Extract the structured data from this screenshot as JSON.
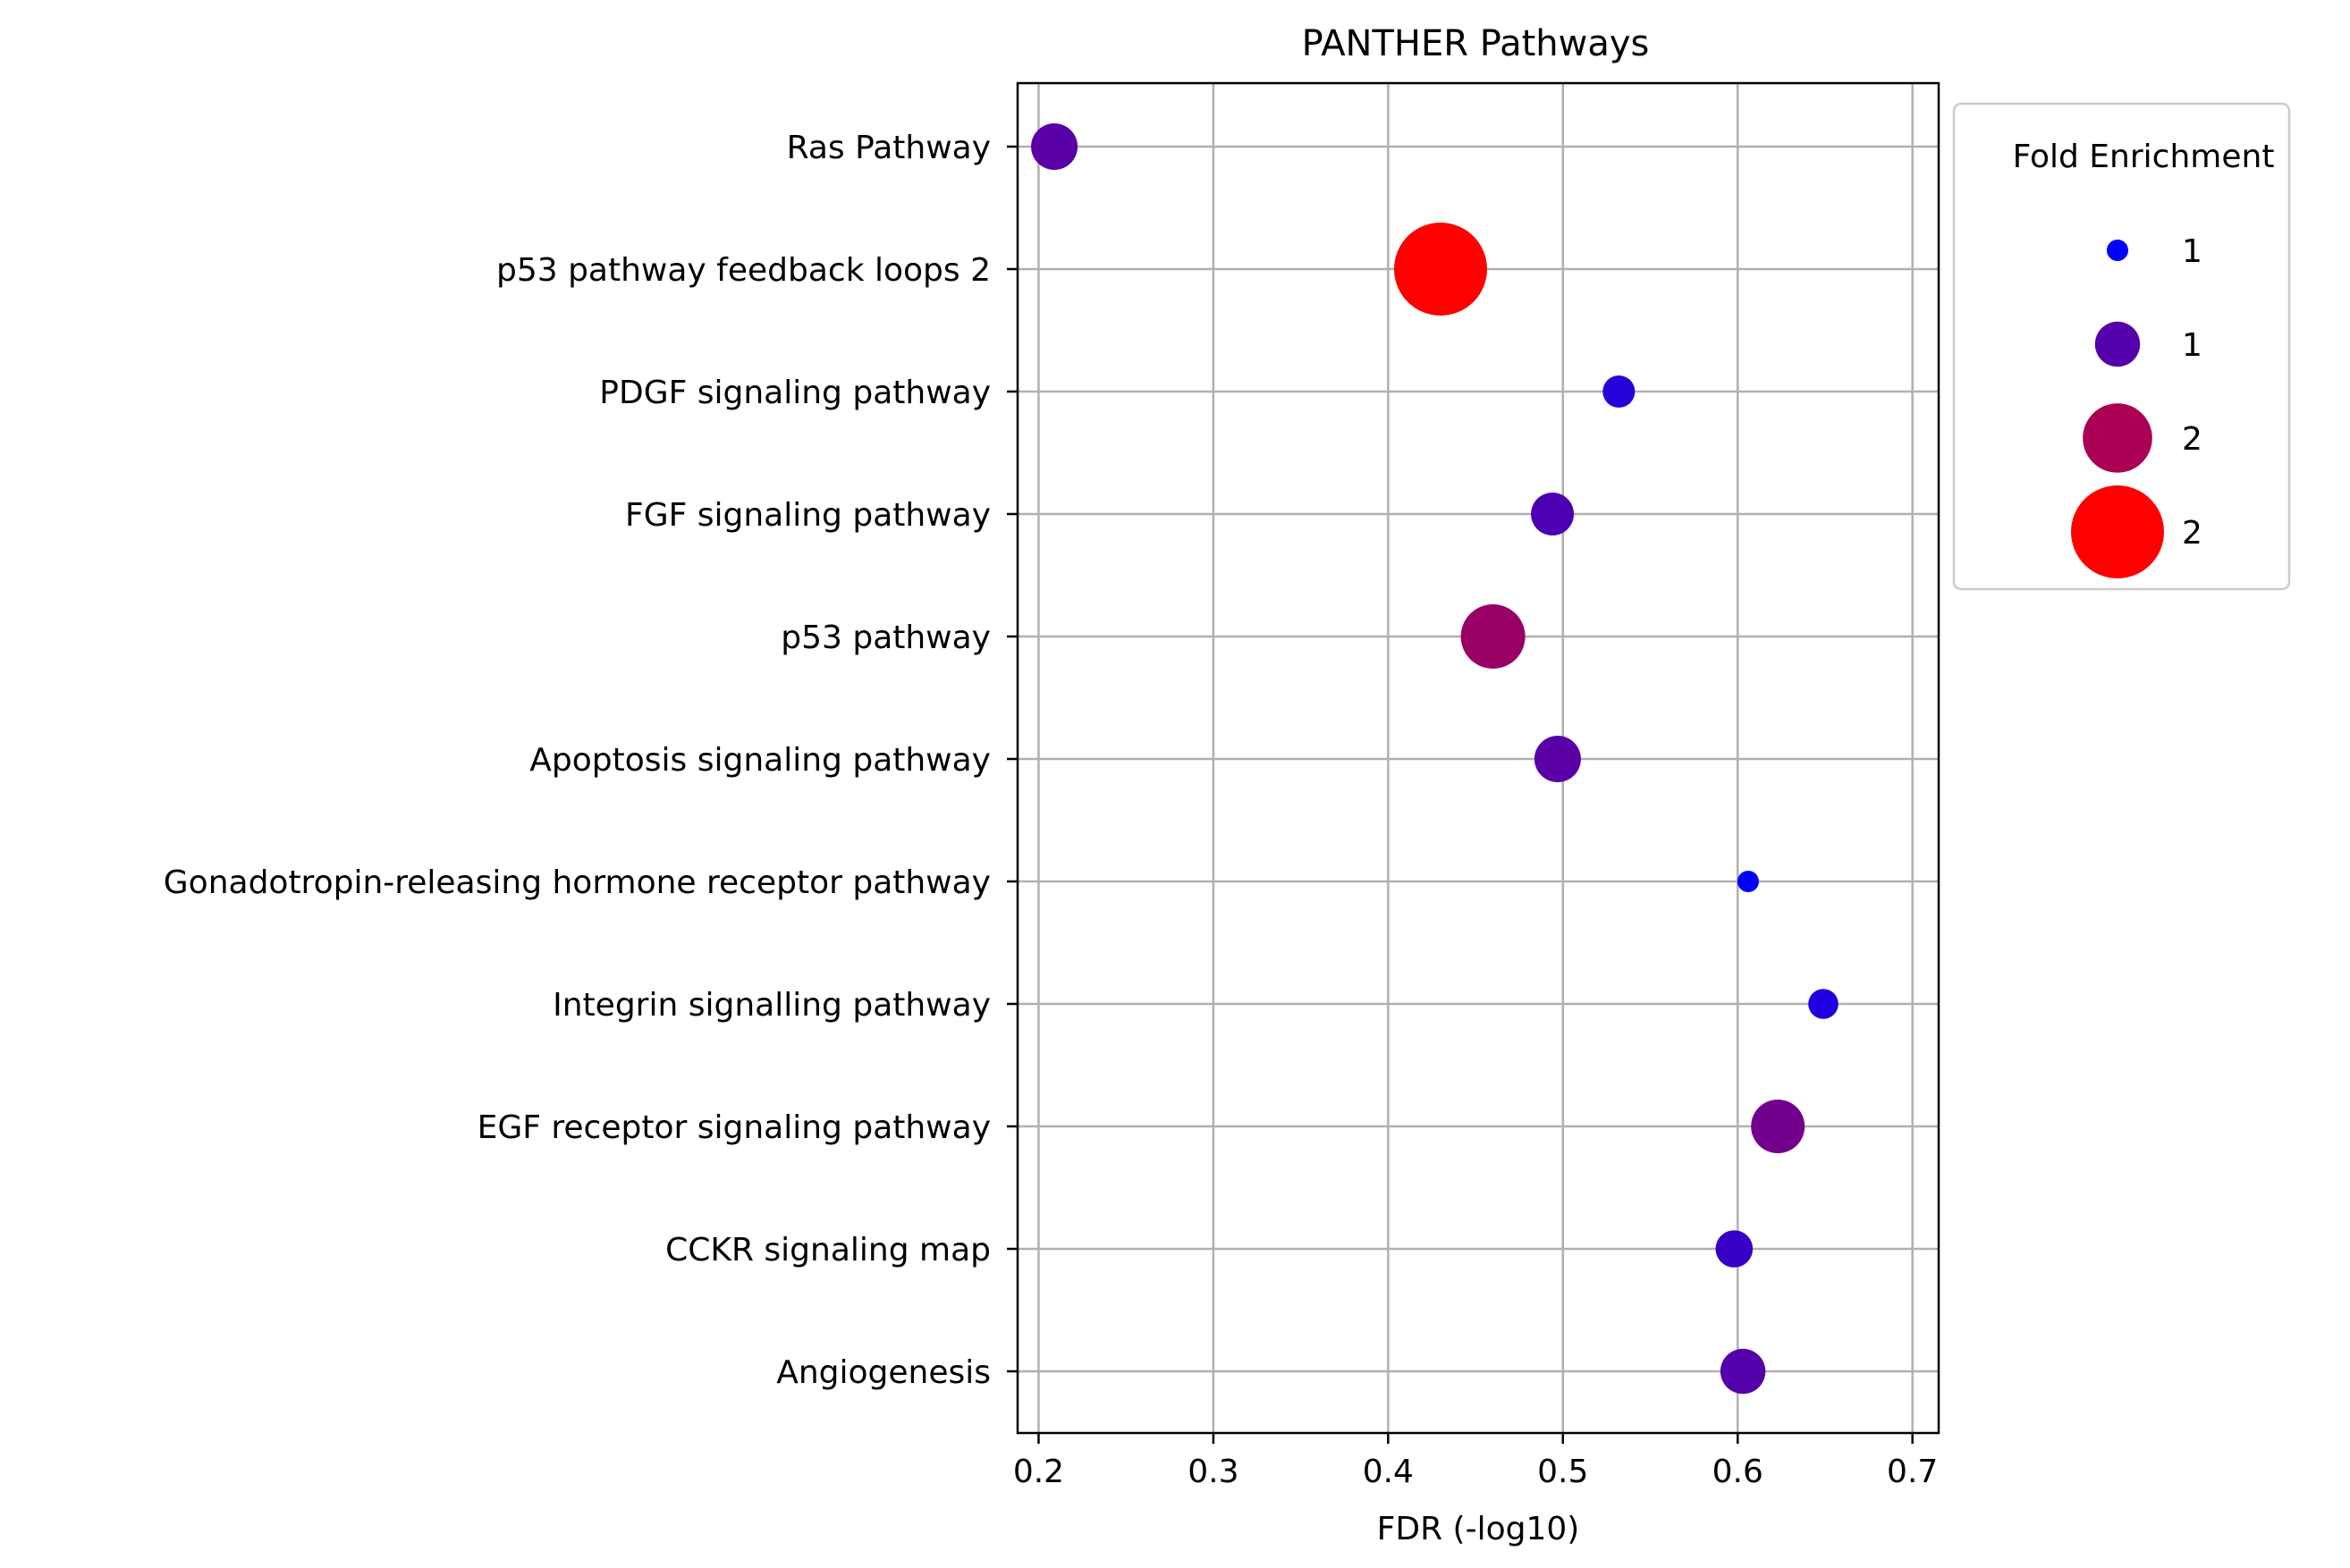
{
  "chart_data": {
    "type": "scatter",
    "title": "PANTHER Pathways",
    "xlabel": "FDR (-log10)",
    "ylabel": "",
    "xlim": [
      0.188,
      0.715
    ],
    "xticks": [
      0.2,
      0.3,
      0.4,
      0.5,
      0.6,
      0.7
    ],
    "xtick_labels": [
      "0.2",
      "0.3",
      "0.4",
      "0.5",
      "0.6",
      "0.7"
    ],
    "grid": true,
    "legend_placement": "outside right, top",
    "categories": [
      "Ras Pathway",
      "p53 pathway feedback loops 2",
      "PDGF signaling pathway",
      "FGF signaling pathway",
      "p53 pathway",
      "Apoptosis signaling pathway",
      "Gonadotropin-releasing hormone receptor pathway",
      "Integrin signalling pathway",
      "EGF receptor signaling pathway",
      "CCKR signaling map",
      "Angiogenesis"
    ],
    "points": [
      {
        "category": "Ras Pathway",
        "x": 0.209,
        "fold_enrichment": 1.35
      },
      {
        "category": "p53 pathway feedback loops 2",
        "x": 0.43,
        "fold_enrichment": 2.0
      },
      {
        "category": "PDGF signaling pathway",
        "x": 0.532,
        "fold_enrichment": 1.15
      },
      {
        "category": "FGF signaling pathway",
        "x": 0.494,
        "fold_enrichment": 1.3
      },
      {
        "category": "p53 pathway",
        "x": 0.46,
        "fold_enrichment": 1.6
      },
      {
        "category": "Apoptosis signaling pathway",
        "x": 0.497,
        "fold_enrichment": 1.35
      },
      {
        "category": "Gonadotropin-releasing hormone receptor pathway",
        "x": 0.606,
        "fold_enrichment": 1.0
      },
      {
        "category": "Integrin signalling pathway",
        "x": 0.649,
        "fold_enrichment": 1.12
      },
      {
        "category": "EGF receptor signaling pathway",
        "x": 0.623,
        "fold_enrichment": 1.45
      },
      {
        "category": "CCKR signaling map",
        "x": 0.598,
        "fold_enrichment": 1.22
      },
      {
        "category": "Angiogenesis",
        "x": 0.603,
        "fold_enrichment": 1.33
      }
    ],
    "size_encoding": "fold_enrichment",
    "color_scale": {
      "low": "#0000ff",
      "high": "#ff0000",
      "domain": [
        1.0,
        2.0
      ]
    },
    "legend": {
      "title": "Fold Enrichment",
      "entries": [
        {
          "label": "1",
          "fold_enrichment": 1.0
        },
        {
          "label": "1",
          "fold_enrichment": 1.33
        },
        {
          "label": "2",
          "fold_enrichment": 1.67
        },
        {
          "label": "2",
          "fold_enrichment": 2.0
        }
      ]
    }
  }
}
